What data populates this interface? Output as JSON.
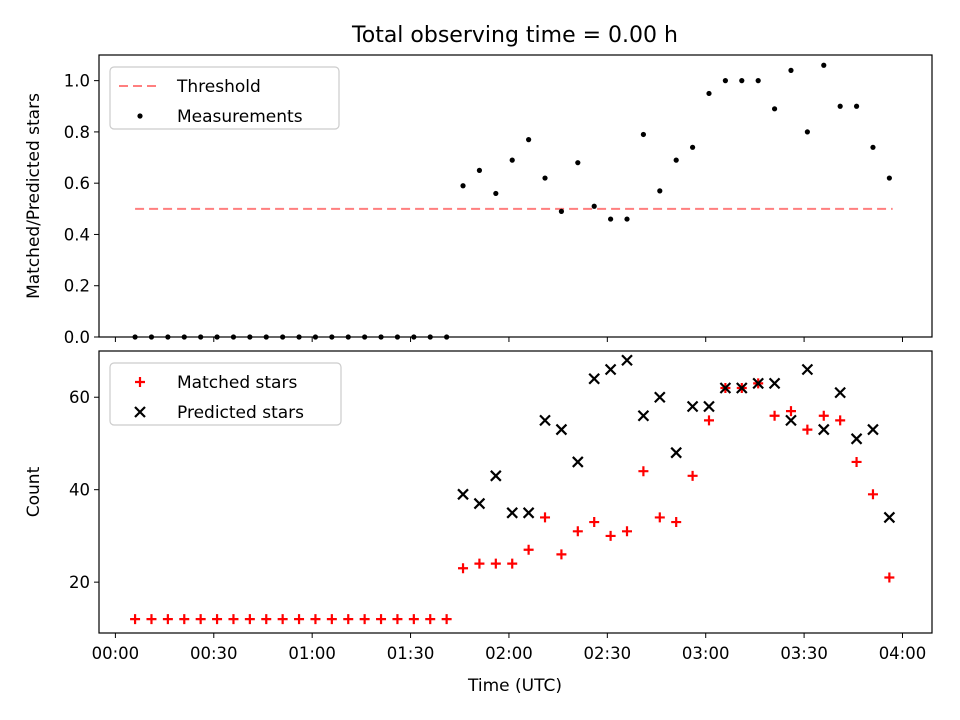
{
  "chart_data": [
    {
      "type": "scatter",
      "title": "Total observing time = 0.00 h",
      "xlabel": "",
      "ylabel": "Matched/Predicted stars",
      "ylim": [
        0,
        1.1
      ],
      "yticks": [
        "0.0",
        "0.2",
        "0.4",
        "0.6",
        "0.8",
        "1.0"
      ],
      "legend_position": "upper-left",
      "series": [
        {
          "name": "Threshold",
          "style": "dashed-line",
          "color": "#ff7f7f",
          "x": [
            "00:06",
            "03:57"
          ],
          "values": [
            0.5,
            0.5
          ]
        },
        {
          "name": "Measurements",
          "style": "dots",
          "color": "#000000",
          "x": [
            "00:06",
            "00:11",
            "00:16",
            "00:21",
            "00:26",
            "00:31",
            "00:36",
            "00:41",
            "00:46",
            "00:51",
            "00:56",
            "01:01",
            "01:06",
            "01:11",
            "01:16",
            "01:21",
            "01:26",
            "01:31",
            "01:36",
            "01:41",
            "01:46",
            "01:51",
            "01:56",
            "02:01",
            "02:06",
            "02:11",
            "02:16",
            "02:21",
            "02:26",
            "02:31",
            "02:36",
            "02:41",
            "02:46",
            "02:51",
            "02:56",
            "03:01",
            "03:06",
            "03:11",
            "03:16",
            "03:21",
            "03:26",
            "03:31",
            "03:36",
            "03:41",
            "03:46",
            "03:51",
            "03:56"
          ],
          "values": [
            0,
            0,
            0,
            0,
            0,
            0,
            0,
            0,
            0,
            0,
            0,
            0,
            0,
            0,
            0,
            0,
            0,
            0,
            0,
            0,
            0.59,
            0.65,
            0.56,
            0.69,
            0.77,
            0.62,
            0.49,
            0.68,
            0.51,
            0.46,
            0.46,
            0.79,
            0.57,
            0.69,
            0.74,
            0.95,
            1.0,
            1.0,
            1.0,
            0.89,
            1.04,
            0.8,
            1.06,
            0.9,
            0.9,
            0.74,
            0.62
          ]
        }
      ]
    },
    {
      "type": "scatter",
      "title": "",
      "xlabel": "Time (UTC)",
      "ylabel": "Count",
      "ylim": [
        9,
        70
      ],
      "yticks": [
        "20",
        "40",
        "60"
      ],
      "xlim": [
        "23:55",
        "04:09"
      ],
      "xticks": [
        "00:00",
        "00:30",
        "01:00",
        "01:30",
        "02:00",
        "02:30",
        "03:00",
        "03:30",
        "04:00"
      ],
      "legend_position": "upper-left",
      "series": [
        {
          "name": "Matched stars",
          "style": "plus",
          "color": "#ff0000",
          "x": [
            "00:06",
            "00:11",
            "00:16",
            "00:21",
            "00:26",
            "00:31",
            "00:36",
            "00:41",
            "00:46",
            "00:51",
            "00:56",
            "01:01",
            "01:06",
            "01:11",
            "01:16",
            "01:21",
            "01:26",
            "01:31",
            "01:36",
            "01:41",
            "01:46",
            "01:51",
            "01:56",
            "02:01",
            "02:06",
            "02:11",
            "02:16",
            "02:21",
            "02:26",
            "02:31",
            "02:36",
            "02:41",
            "02:46",
            "02:51",
            "02:56",
            "03:01",
            "03:06",
            "03:11",
            "03:16",
            "03:21",
            "03:26",
            "03:31",
            "03:36",
            "03:41",
            "03:46",
            "03:51",
            "03:56"
          ],
          "values": [
            12,
            12,
            12,
            12,
            12,
            12,
            12,
            12,
            12,
            12,
            12,
            12,
            12,
            12,
            12,
            12,
            12,
            12,
            12,
            12,
            23,
            24,
            24,
            24,
            27,
            34,
            26,
            31,
            33,
            30,
            31,
            44,
            34,
            33,
            43,
            55,
            62,
            62,
            63,
            56,
            57,
            53,
            56,
            55,
            46,
            39,
            21
          ]
        },
        {
          "name": "Predicted stars",
          "style": "x",
          "color": "#000000",
          "x": [
            "01:46",
            "01:51",
            "01:56",
            "02:01",
            "02:06",
            "02:11",
            "02:16",
            "02:21",
            "02:26",
            "02:31",
            "02:36",
            "02:41",
            "02:46",
            "02:51",
            "02:56",
            "03:01",
            "03:06",
            "03:11",
            "03:16",
            "03:21",
            "03:26",
            "03:31",
            "03:36",
            "03:41",
            "03:46",
            "03:51",
            "03:56"
          ],
          "values": [
            39,
            37,
            43,
            35,
            35,
            55,
            53,
            46,
            64,
            66,
            68,
            56,
            60,
            48,
            58,
            58,
            62,
            62,
            63,
            63,
            55,
            66,
            53,
            61,
            51,
            53,
            34
          ]
        }
      ]
    }
  ]
}
